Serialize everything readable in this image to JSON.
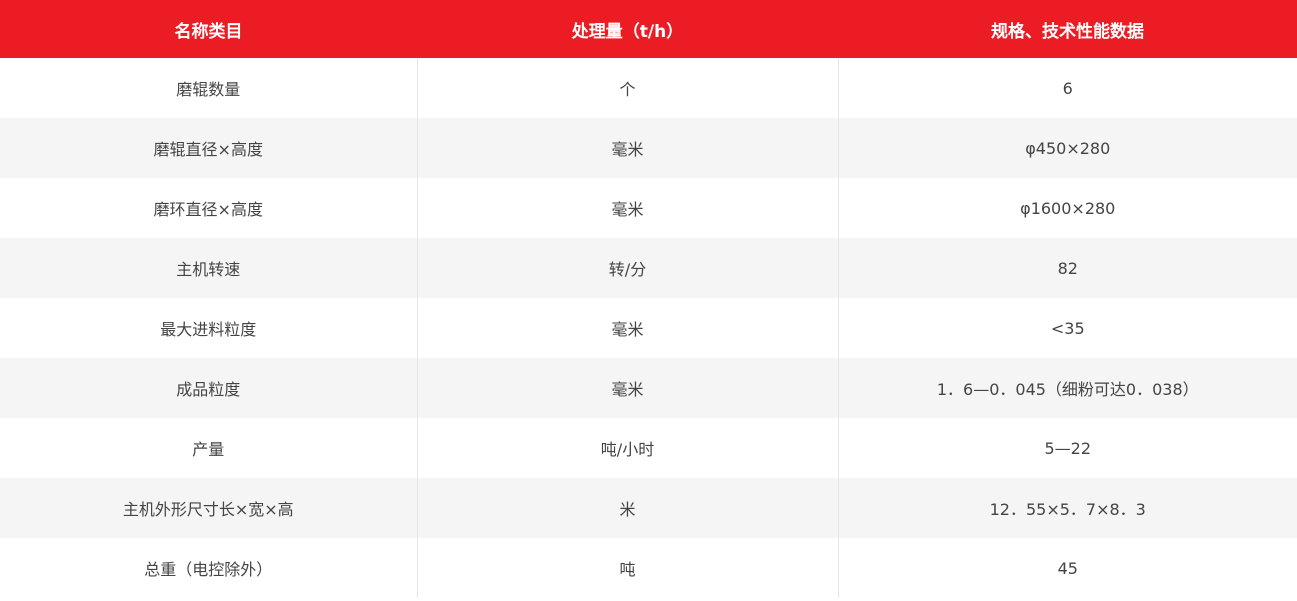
{
  "header": [
    "名称类目",
    "处理量（t/h）",
    "规格、技术性能数据"
  ],
  "rows": [
    [
      "磨辊数量",
      "个",
      "6"
    ],
    [
      "磨辊直径×高度",
      "毫米",
      "φ450×280"
    ],
    [
      "磨环直径×高度",
      "毫米",
      "φ1600×280"
    ],
    [
      "主机转速",
      "转/分",
      "82"
    ],
    [
      "最大进料粒度",
      "毫米",
      "<35"
    ],
    [
      "成品粒度",
      "毫米",
      "1．6—0．045（细粉可达0．038）"
    ],
    [
      "产量",
      "吨/小时",
      "5—22"
    ],
    [
      "主机外形尺寸长×宽×高",
      "米",
      "12．55×5．7×8．3"
    ],
    [
      "总重（电控除外）",
      "吨",
      "45"
    ]
  ],
  "colors": {
    "header_bg": "#ec1c24",
    "stripe": "#f5f5f5"
  }
}
